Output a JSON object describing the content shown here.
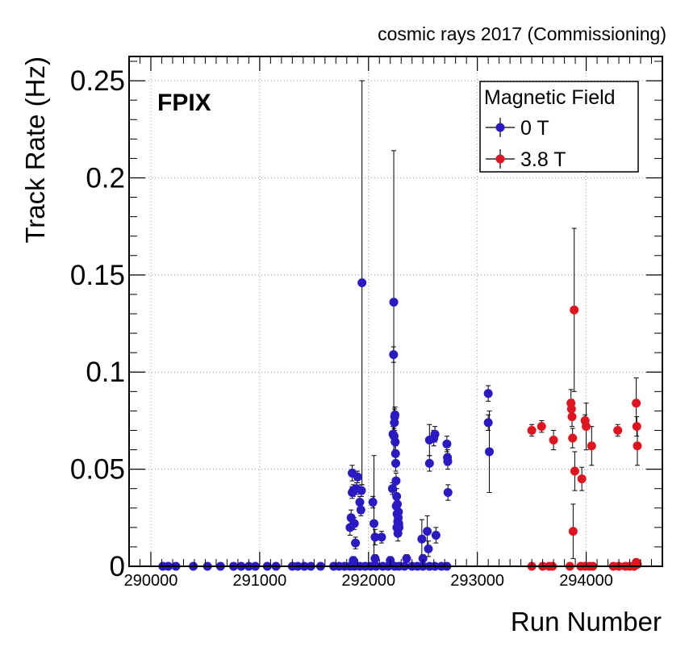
{
  "chart_data": {
    "type": "scatter",
    "title": "cosmic rays 2017 (Commissioning)",
    "label": "FPIX",
    "xlabel": "Run Number",
    "ylabel": "Track Rate (Hz)",
    "xlim": [
      289800,
      294700
    ],
    "ylim": [
      0,
      0.2625
    ],
    "x_ticks": [
      {
        "value": 290000,
        "label": "290000"
      },
      {
        "value": 291000,
        "label": "291000"
      },
      {
        "value": 292000,
        "label": "292000"
      },
      {
        "value": 293000,
        "label": "293000"
      },
      {
        "value": 294000,
        "label": "294000"
      }
    ],
    "y_ticks": [
      {
        "value": 0,
        "label": "0"
      },
      {
        "value": 0.05,
        "label": "0.05"
      },
      {
        "value": 0.1,
        "label": "0.1"
      },
      {
        "value": 0.15,
        "label": "0.15"
      },
      {
        "value": 0.2,
        "label": "0.2"
      },
      {
        "value": 0.25,
        "label": "0.25"
      }
    ],
    "grid": true,
    "legend": {
      "title": "Magnetic Field",
      "position": "top-right"
    },
    "series": [
      {
        "name": "0 T",
        "color": "#2a1ac4",
        "points": [
          {
            "x": 290110,
            "y": 0,
            "err": 0
          },
          {
            "x": 290160,
            "y": 0,
            "err": 0
          },
          {
            "x": 290230,
            "y": 0,
            "err": 0
          },
          {
            "x": 290390,
            "y": 0,
            "err": 0
          },
          {
            "x": 290520,
            "y": 0,
            "err": 0
          },
          {
            "x": 290640,
            "y": 0,
            "err": 0
          },
          {
            "x": 290760,
            "y": 0,
            "err": 0
          },
          {
            "x": 290830,
            "y": 0,
            "err": 0
          },
          {
            "x": 290900,
            "y": 0,
            "err": 0
          },
          {
            "x": 290960,
            "y": 0,
            "err": 0
          },
          {
            "x": 291070,
            "y": 0,
            "err": 0
          },
          {
            "x": 291150,
            "y": 0,
            "err": 0
          },
          {
            "x": 291300,
            "y": 0,
            "err": 0
          },
          {
            "x": 291350,
            "y": 0,
            "err": 0
          },
          {
            "x": 291410,
            "y": 0,
            "err": 0
          },
          {
            "x": 291470,
            "y": 0,
            "err": 0
          },
          {
            "x": 291560,
            "y": 0,
            "err": 0
          },
          {
            "x": 291680,
            "y": 0,
            "err": 0
          },
          {
            "x": 291730,
            "y": 0,
            "err": 0
          },
          {
            "x": 291780,
            "y": 0,
            "err": 0
          },
          {
            "x": 291830,
            "y": 0,
            "err": 0
          },
          {
            "x": 291870,
            "y": 0,
            "err": 0
          },
          {
            "x": 291920,
            "y": 0,
            "err": 0
          },
          {
            "x": 291970,
            "y": 0,
            "err": 0
          },
          {
            "x": 292020,
            "y": 0,
            "err": 0
          },
          {
            "x": 292070,
            "y": 0,
            "err": 0
          },
          {
            "x": 292130,
            "y": 0,
            "err": 0
          },
          {
            "x": 292180,
            "y": 0,
            "err": 0
          },
          {
            "x": 292240,
            "y": 0,
            "err": 0
          },
          {
            "x": 292280,
            "y": 0,
            "err": 0
          },
          {
            "x": 292330,
            "y": 0,
            "err": 0
          },
          {
            "x": 292400,
            "y": 0,
            "err": 0
          },
          {
            "x": 292450,
            "y": 0,
            "err": 0
          },
          {
            "x": 292500,
            "y": 0,
            "err": 0
          },
          {
            "x": 292560,
            "y": 0,
            "err": 0
          },
          {
            "x": 292610,
            "y": 0,
            "err": 0
          },
          {
            "x": 292670,
            "y": 0,
            "err": 0
          },
          {
            "x": 292720,
            "y": 0,
            "err": 0
          },
          {
            "x": 291830,
            "y": 0.02,
            "err": 0.004
          },
          {
            "x": 291840,
            "y": 0.025,
            "err": 0.004
          },
          {
            "x": 291850,
            "y": 0.038,
            "err": 0.003
          },
          {
            "x": 291850,
            "y": 0.048,
            "err": 0.004
          },
          {
            "x": 291860,
            "y": 0.039,
            "err": 0.003
          },
          {
            "x": 291860,
            "y": 0.003,
            "err": 0.002
          },
          {
            "x": 291870,
            "y": 0.022,
            "err": 0.003
          },
          {
            "x": 291880,
            "y": 0.012,
            "err": 0.003
          },
          {
            "x": 291890,
            "y": 0.04,
            "err": 0.003
          },
          {
            "x": 291900,
            "y": 0.046,
            "err": 0.003
          },
          {
            "x": 291920,
            "y": 0.033,
            "err": 0.003
          },
          {
            "x": 291930,
            "y": 0.029,
            "err": 0.003
          },
          {
            "x": 291935,
            "y": 0.039,
            "err": 0.003
          },
          {
            "x": 291940,
            "y": 0.146,
            "err": 0.104
          },
          {
            "x": 292040,
            "y": 0.033,
            "err": 0.003
          },
          {
            "x": 292050,
            "y": 0.022,
            "err": 0.035
          },
          {
            "x": 292060,
            "y": 0.015,
            "err": 0.004
          },
          {
            "x": 292060,
            "y": 0.004,
            "err": 0.002
          },
          {
            "x": 292120,
            "y": 0.015,
            "err": 0.003
          },
          {
            "x": 292200,
            "y": 0.003,
            "err": 0.002
          },
          {
            "x": 292220,
            "y": 0.04,
            "err": 0.003
          },
          {
            "x": 292225,
            "y": 0.068,
            "err": 0.004
          },
          {
            "x": 292230,
            "y": 0.109,
            "err": 0.004
          },
          {
            "x": 292232,
            "y": 0.136,
            "err": 0.078
          },
          {
            "x": 292235,
            "y": 0.067,
            "err": 0.004
          },
          {
            "x": 292238,
            "y": 0.074,
            "err": 0.004
          },
          {
            "x": 292240,
            "y": 0.077,
            "err": 0.004
          },
          {
            "x": 292243,
            "y": 0.078,
            "err": 0.004
          },
          {
            "x": 292245,
            "y": 0.064,
            "err": 0.004
          },
          {
            "x": 292248,
            "y": 0.058,
            "err": 0.004
          },
          {
            "x": 292250,
            "y": 0.053,
            "err": 0.004
          },
          {
            "x": 292253,
            "y": 0.044,
            "err": 0.004
          },
          {
            "x": 292255,
            "y": 0.031,
            "err": 0.004
          },
          {
            "x": 292258,
            "y": 0.036,
            "err": 0.004
          },
          {
            "x": 292260,
            "y": 0.02,
            "err": 0.004
          },
          {
            "x": 292262,
            "y": 0.027,
            "err": 0.004
          },
          {
            "x": 292265,
            "y": 0.032,
            "err": 0.004
          },
          {
            "x": 292268,
            "y": 0.023,
            "err": 0.004
          },
          {
            "x": 292270,
            "y": 0.017,
            "err": 0.004
          },
          {
            "x": 292273,
            "y": 0.025,
            "err": 0.004
          },
          {
            "x": 292275,
            "y": 0.028,
            "err": 0.004
          },
          {
            "x": 292278,
            "y": 0.022,
            "err": 0.004
          },
          {
            "x": 292280,
            "y": 0.02,
            "err": 0.004
          },
          {
            "x": 292350,
            "y": 0.004,
            "err": 0.002
          },
          {
            "x": 292490,
            "y": 0.014,
            "err": 0.01
          },
          {
            "x": 292500,
            "y": 0.004,
            "err": 0.002
          },
          {
            "x": 292540,
            "y": 0.018,
            "err": 0.008
          },
          {
            "x": 292550,
            "y": 0.009,
            "err": 0.004
          },
          {
            "x": 292560,
            "y": 0.065,
            "err": 0.008
          },
          {
            "x": 292560,
            "y": 0.053,
            "err": 0.004
          },
          {
            "x": 292600,
            "y": 0.066,
            "err": 0.004
          },
          {
            "x": 292610,
            "y": 0.068,
            "err": 0.004
          },
          {
            "x": 292620,
            "y": 0.016,
            "err": 0.004
          },
          {
            "x": 292720,
            "y": 0.063,
            "err": 0.004
          },
          {
            "x": 292725,
            "y": 0.056,
            "err": 0.004
          },
          {
            "x": 292728,
            "y": 0.054,
            "err": 0.004
          },
          {
            "x": 292730,
            "y": 0.038,
            "err": 0.004
          },
          {
            "x": 293100,
            "y": 0.089,
            "err": 0.004
          },
          {
            "x": 293100,
            "y": 0.074,
            "err": 0.004
          },
          {
            "x": 293110,
            "y": 0.059,
            "err": 0.021
          }
        ]
      },
      {
        "name": "3.8 T",
        "color": "#e0141e",
        "points": [
          {
            "x": 293500,
            "y": 0,
            "err": 0
          },
          {
            "x": 293600,
            "y": 0,
            "err": 0
          },
          {
            "x": 293660,
            "y": 0,
            "err": 0
          },
          {
            "x": 293690,
            "y": 0,
            "err": 0
          },
          {
            "x": 293850,
            "y": 0,
            "err": 0
          },
          {
            "x": 293950,
            "y": 0,
            "err": 0
          },
          {
            "x": 293990,
            "y": 0,
            "err": 0
          },
          {
            "x": 294030,
            "y": 0,
            "err": 0
          },
          {
            "x": 294060,
            "y": 0,
            "err": 0
          },
          {
            "x": 294250,
            "y": 0,
            "err": 0
          },
          {
            "x": 294300,
            "y": 0,
            "err": 0
          },
          {
            "x": 294360,
            "y": 0,
            "err": 0
          },
          {
            "x": 294400,
            "y": 0,
            "err": 0
          },
          {
            "x": 294440,
            "y": 0,
            "err": 0
          },
          {
            "x": 294460,
            "y": 0.002,
            "err": 0.001
          },
          {
            "x": 294470,
            "y": 0.001,
            "err": 0.001
          },
          {
            "x": 293500,
            "y": 0.07,
            "err": 0.003
          },
          {
            "x": 293590,
            "y": 0.072,
            "err": 0.003
          },
          {
            "x": 293700,
            "y": 0.065,
            "err": 0.005
          },
          {
            "x": 293860,
            "y": 0.084,
            "err": 0.007
          },
          {
            "x": 293865,
            "y": 0.081,
            "err": 0.005
          },
          {
            "x": 293870,
            "y": 0.077,
            "err": 0.005
          },
          {
            "x": 293875,
            "y": 0.066,
            "err": 0.005
          },
          {
            "x": 293880,
            "y": 0.018,
            "err": 0.014
          },
          {
            "x": 293890,
            "y": 0.132,
            "err": 0.042
          },
          {
            "x": 293895,
            "y": 0.049,
            "err": 0.01
          },
          {
            "x": 293960,
            "y": 0.045,
            "err": 0.006
          },
          {
            "x": 293990,
            "y": 0.075,
            "err": 0.003
          },
          {
            "x": 294000,
            "y": 0.072,
            "err": 0.012
          },
          {
            "x": 294050,
            "y": 0.062,
            "err": 0.01
          },
          {
            "x": 294290,
            "y": 0.07,
            "err": 0.003
          },
          {
            "x": 294460,
            "y": 0.084,
            "err": 0.013
          },
          {
            "x": 294465,
            "y": 0.072,
            "err": 0.005
          },
          {
            "x": 294470,
            "y": 0.062,
            "err": 0.01
          }
        ]
      }
    ]
  }
}
